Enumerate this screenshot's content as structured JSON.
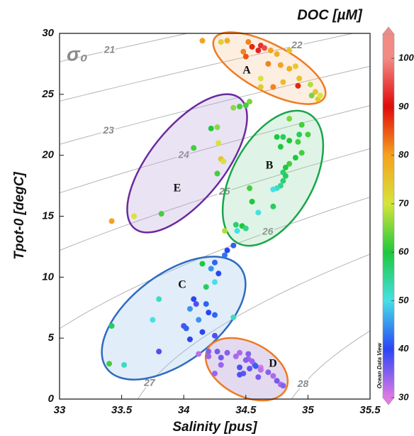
{
  "chart_data": {
    "type": "scatter",
    "title": "DOC [µM]",
    "xlabel": "Salinity [pus]",
    "ylabel": "Tpot-0 [degC]",
    "contour_label": "σ₀",
    "watermark": "Ocean Data View",
    "xlim": [
      33,
      35.5
    ],
    "xticks": [
      33,
      33.5,
      34,
      34.5,
      35,
      35.5
    ],
    "ylim": [
      0,
      30
    ],
    "yticks": [
      0,
      5,
      10,
      15,
      20,
      25,
      30
    ],
    "clim": [
      30,
      105
    ],
    "cticks": [
      30,
      40,
      50,
      60,
      70,
      80,
      90,
      100
    ],
    "colormap": [
      "#e27ae6",
      "#2a45f5",
      "#45e0e6",
      "#1ec83c",
      "#d6e43c",
      "#f5a21e",
      "#e00a0a",
      "#f28a84"
    ],
    "isopycnals": [
      21,
      22,
      23,
      24,
      25,
      26,
      27,
      28
    ],
    "annotations": [
      "A",
      "B",
      "C",
      "D",
      "E"
    ],
    "x": [
      34.15,
      34.35,
      34.52,
      34.55,
      34.62,
      34.65,
      34.6,
      34.48,
      34.5,
      34.7,
      34.75,
      34.85,
      34.68,
      34.78,
      34.85,
      34.9,
      34.93,
      34.8,
      34.62,
      34.72,
      34.62,
      35.02,
      35.06,
      35.08,
      35.1,
      35.03,
      34.92,
      34.3,
      34.85,
      34.95,
      35,
      34.93,
      34.75,
      34.8,
      34.85,
      34.92,
      34.78,
      34.95,
      34.9,
      34.85,
      34.82,
      34.8,
      34.82,
      34.8,
      34.78,
      34.75,
      34.72,
      34.53,
      34.55,
      34.72,
      34.6,
      34.47,
      34.42,
      34.43,
      34.33,
      34.5,
      34.45,
      34.5,
      34.53,
      34.27,
      34.22,
      34.28,
      34.08,
      34.3,
      34.32,
      34.27,
      33.82,
      33.6,
      33.42,
      34.4,
      34.4,
      34.35,
      34.33,
      34.25,
      34.15,
      34.22,
      34.28,
      34.25,
      34.18,
      34.08,
      34.1,
      34.18,
      34.05,
      34.2,
      34.25,
      34.12,
      34,
      34.02,
      33.75,
      33.8,
      33.42,
      34.15,
      34.25,
      34.05,
      34.4,
      33.8,
      33.4,
      33.52,
      34.12,
      34.2,
      34.27,
      34.35,
      34.45,
      34.52,
      34.2,
      34.3,
      34.42,
      34.52,
      34.5,
      34.57,
      34.45,
      34.53,
      34.62,
      34.62,
      34.68,
      34.72,
      34.75,
      34.78,
      34.8,
      34.25,
      34.3,
      34.48,
      34.58,
      34.45,
      34.6,
      34.55
    ],
    "values": [
      29.4,
      29.4,
      29.3,
      28.9,
      29,
      28.8,
      28.6,
      28.5,
      28.1,
      28.6,
      28.3,
      28.6,
      27.5,
      27.4,
      27.1,
      27.3,
      26.3,
      26,
      26.3,
      25.6,
      25.6,
      25.8,
      25.2,
      24.6,
      24.9,
      24.9,
      25.7,
      29.3,
      23,
      22.5,
      21.7,
      21.7,
      21.5,
      21.5,
      21.2,
      21.1,
      20.7,
      20.2,
      19.8,
      19.3,
      19,
      18.6,
      18.3,
      17.9,
      17.5,
      17.3,
      17.2,
      17.3,
      16.2,
      15.8,
      15.3,
      14.2,
      14.3,
      13.8,
      13.8,
      14,
      24,
      24.1,
      24.4,
      22.3,
      22.2,
      21,
      20.6,
      19.7,
      19.5,
      18.5,
      15.2,
      15,
      14.6,
      23.9,
      12.6,
      12.2,
      11.8,
      11.2,
      11.1,
      10.7,
      10.3,
      9.6,
      9.2,
      8.2,
      7.8,
      7.8,
      7.4,
      7.1,
      6.9,
      6.5,
      6,
      5.8,
      6.5,
      8.2,
      6,
      5.5,
      5.2,
      4.9,
      6.7,
      3.9,
      2.9,
      2.8,
      3.7,
      3.9,
      3.9,
      3.8,
      3.8,
      3.7,
      3.5,
      3.4,
      3.5,
      3.3,
      3.2,
      2.8,
      2.6,
      2.5,
      2.6,
      2.4,
      2.2,
      1.9,
      1.5,
      1.2,
      1.1,
      2.1,
      2.8,
      2.1,
      2.7,
      2,
      1.8,
      3.1
    ],
    "color_values": [
      80,
      78,
      82,
      88,
      93,
      95,
      92,
      82,
      85,
      80,
      78,
      75,
      82,
      80,
      78,
      74,
      75,
      76,
      70,
      82,
      74,
      68,
      75,
      74,
      70,
      65,
      88,
      73,
      65,
      62,
      62,
      58,
      60,
      58,
      60,
      62,
      60,
      62,
      60,
      62,
      60,
      57,
      58,
      57,
      55,
      52,
      50,
      62,
      60,
      58,
      50,
      60,
      57,
      50,
      68,
      55,
      62,
      62,
      65,
      66,
      60,
      70,
      62,
      75,
      70,
      62,
      62,
      70,
      80,
      66,
      42,
      40,
      43,
      42,
      60,
      45,
      40,
      50,
      58,
      40,
      38,
      42,
      45,
      40,
      42,
      45,
      38,
      42,
      50,
      52,
      58,
      40,
      38,
      40,
      52,
      38,
      62,
      52,
      32,
      35,
      36,
      35,
      33,
      35,
      34,
      36,
      33,
      34,
      35,
      36,
      38,
      37,
      30,
      32,
      35,
      33,
      36,
      33,
      35,
      34,
      34,
      37,
      42,
      38,
      36,
      34
    ],
    "marker_size": 4
  }
}
